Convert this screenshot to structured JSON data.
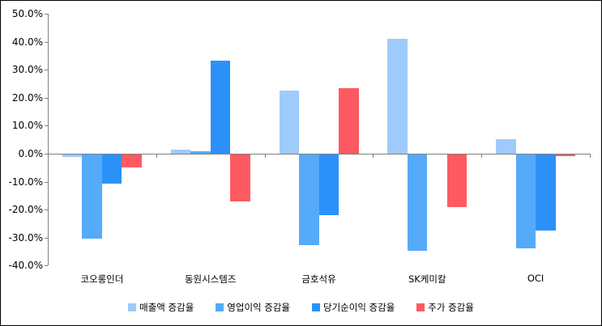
{
  "chart_data": {
    "type": "bar",
    "title": "",
    "categories": [
      "코오롱인더",
      "동원시스템즈",
      "금호석유",
      "SK케미칼",
      "OCI"
    ],
    "series": [
      {
        "name": "매출액 증감율",
        "color": "#9DCBFB",
        "values": [
          -1.0,
          1.5,
          22.5,
          41.0,
          5.2
        ]
      },
      {
        "name": "영업이익 증감율",
        "color": "#55AAFA",
        "values": [
          -30.0,
          1.0,
          -32.5,
          -34.5,
          -33.5
        ]
      },
      {
        "name": "당기순이익 증감율",
        "color": "#2B91F8",
        "values": [
          -10.5,
          33.3,
          -21.8,
          0.0,
          -27.2
        ]
      },
      {
        "name": "주가 증감율",
        "color": "#FF5A62",
        "values": [
          -4.6,
          -16.8,
          23.4,
          -18.8,
          -0.7
        ]
      }
    ],
    "ylim": [
      -40,
      50
    ],
    "ytick_step": 10,
    "ytick_labels": [
      "50.0%",
      "40.0%",
      "30.0%",
      "20.0%",
      "10.0%",
      "0.0%",
      "-10.0%",
      "-20.0%",
      "-30.0%",
      "-40.0%"
    ],
    "grid": false,
    "legend_position": "bottom",
    "axis_color": "#808080",
    "text_color": "#000000",
    "background": "#FFFFFF"
  }
}
